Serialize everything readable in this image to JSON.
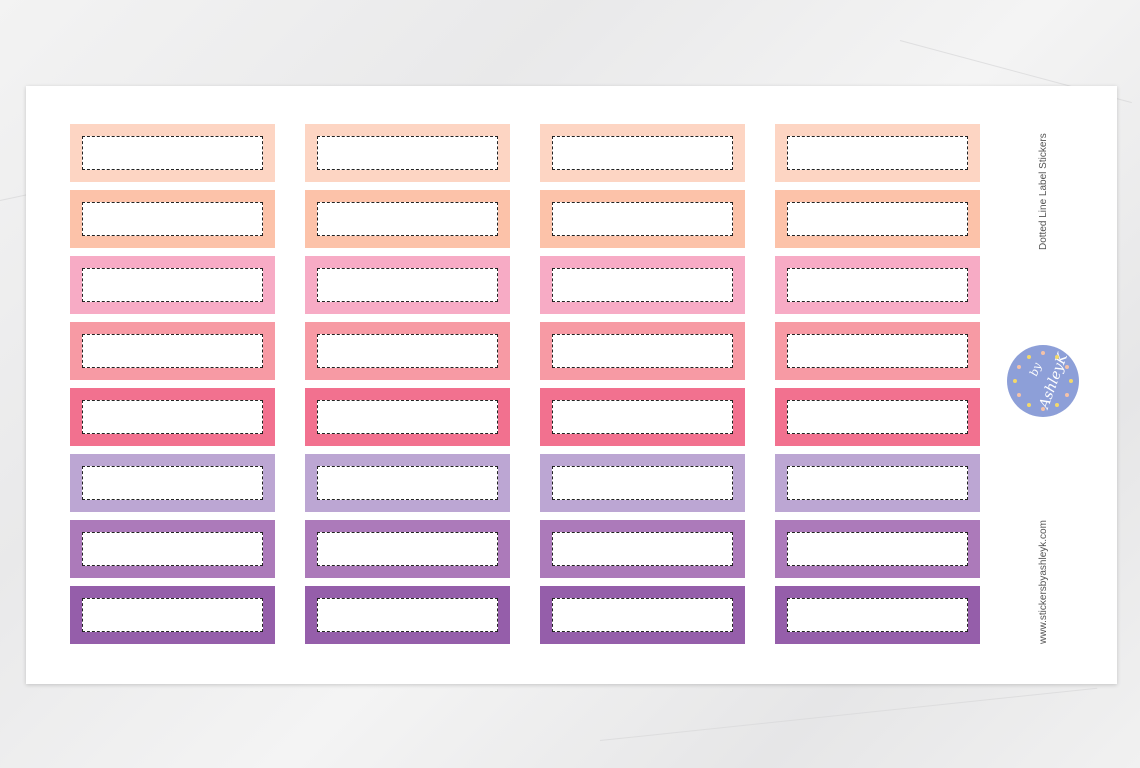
{
  "product": {
    "title": "Dotted Line Label Stickers",
    "website": "www.stickersbyashleyk.com",
    "logo_text": "by AshleyK"
  },
  "sticker_grid": {
    "columns": 4,
    "row_colors": [
      "#fdd5c3",
      "#fcc2a9",
      "#f7abc5",
      "#f79aa4",
      "#f2718f",
      "#bca6d3",
      "#ac7aba",
      "#955eaa"
    ],
    "dash_color": "#222222",
    "logo_color": "#8d9fd8"
  }
}
